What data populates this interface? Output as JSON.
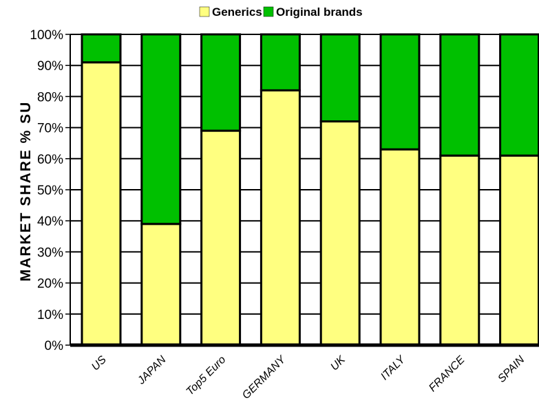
{
  "chart_data": {
    "type": "bar",
    "stacked": true,
    "percent": true,
    "categories": [
      "US",
      "JAPAN",
      "Top5 Euro",
      "GERMANY",
      "UK",
      "ITALY",
      "FRANCE",
      "SPAIN"
    ],
    "series": [
      {
        "name": "Generics",
        "color": "#ffff80",
        "values": [
          91,
          39,
          69,
          82,
          72,
          63,
          61,
          61
        ]
      },
      {
        "name": "Original brands",
        "color": "#00c000",
        "values": [
          9,
          61,
          31,
          18,
          28,
          37,
          39,
          39
        ]
      }
    ],
    "yticks": [
      "0%",
      "10%",
      "20%",
      "30%",
      "40%",
      "50%",
      "60%",
      "70%",
      "80%",
      "90%",
      "100%"
    ],
    "ylim": [
      0,
      100
    ],
    "ylabel": "MARKET SHARE % SU",
    "xlabel": "",
    "title": "",
    "grid": true,
    "legend": "top"
  }
}
